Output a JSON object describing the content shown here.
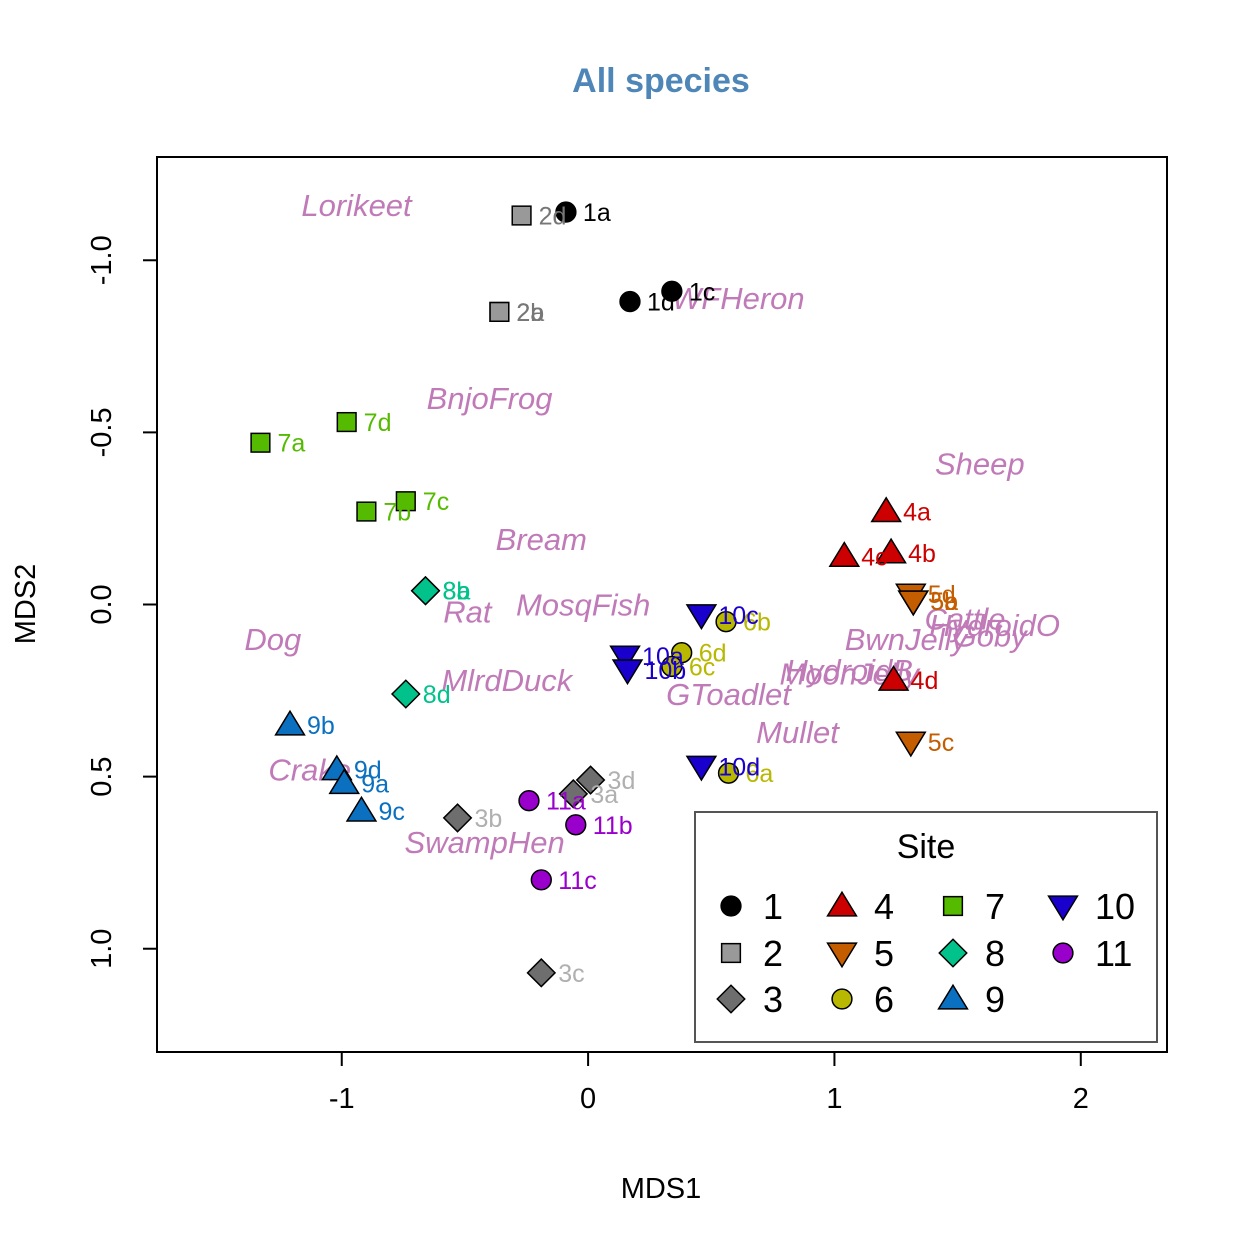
{
  "chart_data": {
    "type": "scatter",
    "title": "All species",
    "xlabel": "MDS1",
    "ylabel": "MDS2",
    "xlim": [
      -1.75,
      2.35
    ],
    "ylim": [
      -1.3,
      1.3
    ],
    "y_reversed": true,
    "xticks": [
      -1,
      0,
      1,
      2
    ],
    "xtick_labels": [
      "-1",
      "0",
      "1",
      "2"
    ],
    "yticks": [
      -1.0,
      -0.5,
      0.0,
      0.5,
      1.0
    ],
    "ytick_labels": [
      "-1.0",
      "-0.5",
      "0.0",
      "0.5",
      "1.0"
    ],
    "legend": {
      "title": "Site",
      "position": "bottom-right",
      "entries": [
        {
          "site": "1",
          "shape": "circle",
          "color": "#000000"
        },
        {
          "site": "4",
          "shape": "triangle-up",
          "color": "#cc0000"
        },
        {
          "site": "7",
          "shape": "square",
          "color": "#55bb00"
        },
        {
          "site": "10",
          "shape": "triangle-down",
          "color": "#1a00cc"
        },
        {
          "site": "2",
          "shape": "square",
          "color": "#999999"
        },
        {
          "site": "5",
          "shape": "triangle-down",
          "color": "#c45c00"
        },
        {
          "site": "8",
          "shape": "diamond",
          "color": "#00c28a"
        },
        {
          "site": "11",
          "shape": "circle",
          "color": "#9900cc"
        },
        {
          "site": "3",
          "shape": "diamond",
          "color": "#6e6e6e"
        },
        {
          "site": "6",
          "shape": "circle",
          "color": "#b8b800"
        },
        {
          "site": "9",
          "shape": "triangle-up",
          "color": "#0b70c0"
        }
      ]
    },
    "sites": {
      "1": {
        "shape": "circle",
        "color": "#000000",
        "label_color": "#000000"
      },
      "2": {
        "shape": "square",
        "color": "#999999",
        "label_color": "#777777"
      },
      "3": {
        "shape": "diamond",
        "color": "#6e6e6e",
        "label_color": "#b0b0b0"
      },
      "4": {
        "shape": "triangle-up",
        "color": "#cc0000",
        "label_color": "#cc0000"
      },
      "5": {
        "shape": "triangle-down",
        "color": "#c45c00",
        "label_color": "#c45c00"
      },
      "6": {
        "shape": "circle",
        "color": "#b8b800",
        "label_color": "#b8b800"
      },
      "7": {
        "shape": "square",
        "color": "#55bb00",
        "label_color": "#55bb00"
      },
      "8": {
        "shape": "diamond",
        "color": "#00c28a",
        "label_color": "#00c28a"
      },
      "9": {
        "shape": "triangle-up",
        "color": "#0b70c0",
        "label_color": "#0b70c0"
      },
      "10": {
        "shape": "triangle-down",
        "color": "#1a00cc",
        "label_color": "#1a00cc"
      },
      "11": {
        "shape": "circle",
        "color": "#9900cc",
        "label_color": "#9900cc"
      }
    },
    "points": [
      {
        "label": "1a",
        "site": "1",
        "x": -0.09,
        "y": -1.14
      },
      {
        "label": "1c",
        "site": "1",
        "x": 0.34,
        "y": -0.91
      },
      {
        "label": "1d",
        "site": "1",
        "x": 0.17,
        "y": -0.88
      },
      {
        "label": "2d",
        "site": "2",
        "x": -0.27,
        "y": -1.13
      },
      {
        "label": "2b",
        "site": "2",
        "x": -0.36,
        "y": -0.85
      },
      {
        "label": "2a",
        "site": "2",
        "x": -0.36,
        "y": -0.85
      },
      {
        "label": "3d",
        "site": "3",
        "x": 0.01,
        "y": 0.51
      },
      {
        "label": "3a",
        "site": "3",
        "x": -0.06,
        "y": 0.55
      },
      {
        "label": "3b",
        "site": "3",
        "x": -0.53,
        "y": 0.62
      },
      {
        "label": "3c",
        "site": "3",
        "x": -0.19,
        "y": 1.07
      },
      {
        "label": "4a",
        "site": "4",
        "x": 1.21,
        "y": -0.27
      },
      {
        "label": "4b",
        "site": "4",
        "x": 1.23,
        "y": -0.15
      },
      {
        "label": "4c",
        "site": "4",
        "x": 1.04,
        "y": -0.14
      },
      {
        "label": "4d",
        "site": "4",
        "x": 1.24,
        "y": 0.22
      },
      {
        "label": "5d",
        "site": "5",
        "x": 1.31,
        "y": -0.03
      },
      {
        "label": "5b",
        "site": "5",
        "x": 1.32,
        "y": -0.01
      },
      {
        "label": "5a",
        "site": "5",
        "x": 1.32,
        "y": -0.01
      },
      {
        "label": "5c",
        "site": "5",
        "x": 1.31,
        "y": 0.4
      },
      {
        "label": "6b",
        "site": "6",
        "x": 0.56,
        "y": 0.05
      },
      {
        "label": "6d",
        "site": "6",
        "x": 0.38,
        "y": 0.14
      },
      {
        "label": "6c",
        "site": "6",
        "x": 0.34,
        "y": 0.18
      },
      {
        "label": "6a",
        "site": "6",
        "x": 0.57,
        "y": 0.49
      },
      {
        "label": "7a",
        "site": "7",
        "x": -1.33,
        "y": -0.47
      },
      {
        "label": "7d",
        "site": "7",
        "x": -0.98,
        "y": -0.53
      },
      {
        "label": "7c",
        "site": "7",
        "x": -0.74,
        "y": -0.3
      },
      {
        "label": "7b",
        "site": "7",
        "x": -0.9,
        "y": -0.27
      },
      {
        "label": "8b",
        "site": "8",
        "x": -0.66,
        "y": -0.04
      },
      {
        "label": "8a",
        "site": "8",
        "x": -0.66,
        "y": -0.04
      },
      {
        "label": "8d",
        "site": "8",
        "x": -0.74,
        "y": 0.26
      },
      {
        "label": "9b",
        "site": "9",
        "x": -1.21,
        "y": 0.35
      },
      {
        "label": "9d",
        "site": "9",
        "x": -1.02,
        "y": 0.48
      },
      {
        "label": "9a",
        "site": "9",
        "x": -0.99,
        "y": 0.52
      },
      {
        "label": "9c",
        "site": "9",
        "x": -0.92,
        "y": 0.6
      },
      {
        "label": "10c",
        "site": "10",
        "x": 0.46,
        "y": 0.03
      },
      {
        "label": "10a",
        "site": "10",
        "x": 0.15,
        "y": 0.15
      },
      {
        "label": "10b",
        "site": "10",
        "x": 0.16,
        "y": 0.19
      },
      {
        "label": "10d",
        "site": "10",
        "x": 0.46,
        "y": 0.47
      },
      {
        "label": "11a",
        "site": "11",
        "x": -0.24,
        "y": 0.57
      },
      {
        "label": "11b",
        "site": "11",
        "x": -0.05,
        "y": 0.64
      },
      {
        "label": "11c",
        "site": "11",
        "x": -0.19,
        "y": 0.8
      }
    ],
    "species": [
      {
        "name": "Lorikeet",
        "x": -0.94,
        "y": -1.16
      },
      {
        "name": "WFHeron",
        "x": 0.61,
        "y": -0.89
      },
      {
        "name": "BnjoFrog",
        "x": -0.4,
        "y": -0.6
      },
      {
        "name": "Sheep",
        "x": 1.59,
        "y": -0.41
      },
      {
        "name": "Bream",
        "x": -0.19,
        "y": -0.19
      },
      {
        "name": "MosqFish",
        "x": -0.02,
        "y": 0.0
      },
      {
        "name": "Rat",
        "x": -0.49,
        "y": 0.02
      },
      {
        "name": "Dog",
        "x": -1.28,
        "y": 0.1
      },
      {
        "name": "Cattle",
        "x": 1.53,
        "y": 0.04
      },
      {
        "name": "HydroidO",
        "x": 1.65,
        "y": 0.06
      },
      {
        "name": "Goby",
        "x": 1.63,
        "y": 0.09
      },
      {
        "name": "BwnJelly",
        "x": 1.29,
        "y": 0.1
      },
      {
        "name": "MlrdDuck",
        "x": -0.33,
        "y": 0.22
      },
      {
        "name": "HydroidB",
        "x": 1.06,
        "y": 0.19
      },
      {
        "name": "MoonJelly",
        "x": 1.06,
        "y": 0.2
      },
      {
        "name": "GToadlet",
        "x": 0.57,
        "y": 0.26
      },
      {
        "name": "Mullet",
        "x": 0.85,
        "y": 0.37
      },
      {
        "name": "Crake",
        "x": -1.13,
        "y": 0.48
      },
      {
        "name": "SwampHen",
        "x": -0.42,
        "y": 0.69
      }
    ],
    "species_color": "#c07ab8",
    "title_color": "#4f86b8"
  }
}
